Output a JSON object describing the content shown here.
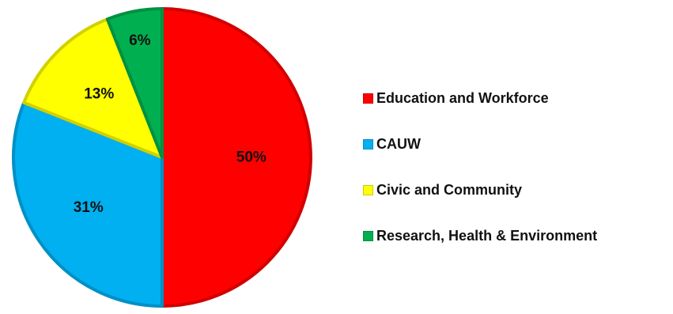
{
  "chart_data": {
    "type": "pie",
    "categories": [
      "Education and Workforce",
      "CAUW",
      "Civic and Community",
      "Research, Health & Environment"
    ],
    "values": [
      50,
      31,
      13,
      6
    ],
    "value_labels": [
      "50%",
      "31%",
      "13%",
      "6%"
    ],
    "colors": [
      "#ff0000",
      "#00b0f0",
      "#ffff00",
      "#00b050"
    ],
    "legend_position": "right"
  }
}
